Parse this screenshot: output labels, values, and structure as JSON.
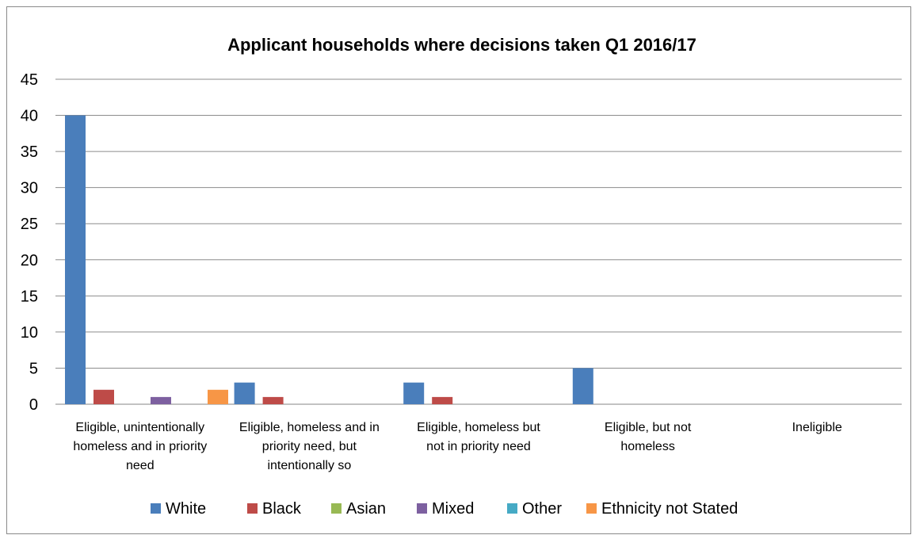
{
  "chart_data": {
    "type": "bar",
    "title": "Applicant households where decisions taken Q1 2016/17",
    "xlabel": "",
    "ylabel": "",
    "ylim": [
      0,
      45
    ],
    "yticks": [
      0,
      5,
      10,
      15,
      20,
      25,
      30,
      35,
      40,
      45
    ],
    "grid": true,
    "legend_position": "bottom",
    "categories": [
      [
        "Eligible, unintentionally",
        "homeless and in priority",
        "need"
      ],
      [
        "Eligible, homeless and in",
        "priority need, but",
        "intentionally so"
      ],
      [
        "Eligible, homeless but",
        "not in priority need"
      ],
      [
        "Eligible, but not",
        "homeless"
      ],
      [
        "Ineligible"
      ]
    ],
    "series": [
      {
        "name": "White",
        "color": "#4a7ebb",
        "values": [
          40,
          3,
          3,
          5,
          0
        ]
      },
      {
        "name": "Black",
        "color": "#be4b48",
        "values": [
          2,
          1,
          1,
          0,
          0
        ]
      },
      {
        "name": "Asian",
        "color": "#98b954",
        "values": [
          0,
          0,
          0,
          0,
          0
        ]
      },
      {
        "name": "Mixed",
        "color": "#7d60a0",
        "values": [
          1,
          0,
          0,
          0,
          0
        ]
      },
      {
        "name": "Other",
        "color": "#46aac5",
        "values": [
          0,
          0,
          0,
          0,
          0
        ]
      },
      {
        "name": "Ethnicity not Stated",
        "color": "#f79646",
        "values": [
          2,
          0,
          0,
          0,
          0
        ]
      }
    ]
  }
}
